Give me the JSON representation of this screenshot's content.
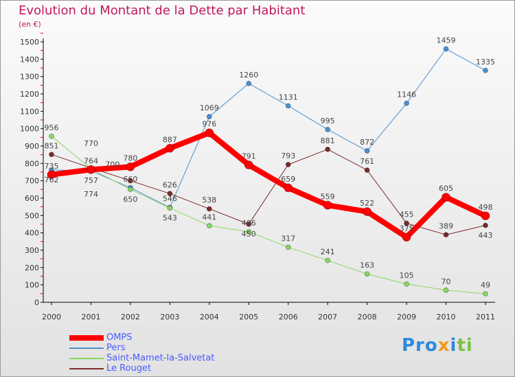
{
  "title": "Evolution du Montant de la Dette par Habitant",
  "unit": "(en €)",
  "logo": "Proxiti",
  "chart_data": {
    "type": "line",
    "title": "Evolution du Montant de la Dette par Habitant",
    "ylabel": "(en €)",
    "x": [
      "2000",
      "2001",
      "2002",
      "2003",
      "2004",
      "2005",
      "2006",
      "2007",
      "2008",
      "2009",
      "2010",
      "2011"
    ],
    "ylim": [
      0,
      1500
    ],
    "yticks": [
      0,
      100,
      200,
      300,
      400,
      500,
      600,
      700,
      800,
      900,
      1000,
      1100,
      1200,
      1300,
      1400,
      1500
    ],
    "legend_position": "bottom-left",
    "series": [
      {
        "name": "OMPS",
        "color": "#ff0000",
        "width": 8,
        "r": 6,
        "values": [
          735,
          764,
          780,
          887,
          976,
          791,
          659,
          559,
          522,
          375,
          605,
          498
        ]
      },
      {
        "name": "Pers",
        "color": "#4a90d0",
        "width": 1,
        "r": 3.5,
        "values": [
          762,
          757,
          660,
          546,
          1069,
          1260,
          1131,
          995,
          872,
          1146,
          1459,
          1335
        ]
      },
      {
        "name": "Saint-Mamet-la-Salvetat",
        "color": "#88d860",
        "width": 1,
        "r": 3.5,
        "values": [
          956,
          770,
          650,
          543,
          441,
          406,
          317,
          241,
          163,
          105,
          70,
          49
        ]
      },
      {
        "name": "Le Rouget",
        "color": "#7a2a2a",
        "width": 1,
        "r": 3.5,
        "values": [
          851,
          774,
          700,
          626,
          538,
          450,
          793,
          881,
          761,
          455,
          389,
          443
        ]
      }
    ]
  }
}
